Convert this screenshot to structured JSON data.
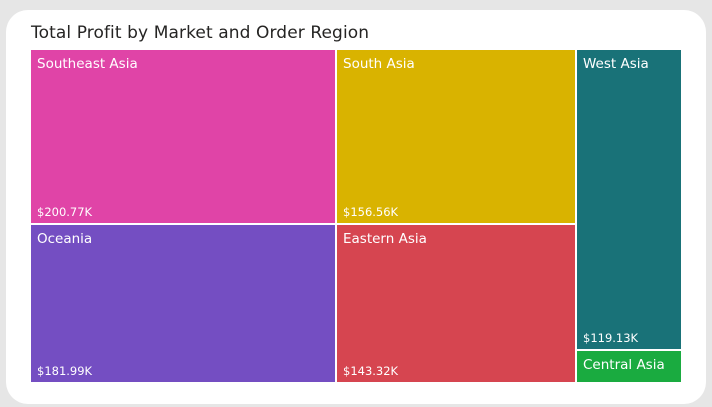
{
  "chart_data": {
    "type": "treemap",
    "title": "Total Profit by Market and Order Region",
    "items": [
      {
        "label": "Southeast Asia",
        "value": 200.77,
        "value_label": "$200.77K",
        "color": "#e044a7"
      },
      {
        "label": "Oceania",
        "value": 181.99,
        "value_label": "$181.99K",
        "color": "#744ec2"
      },
      {
        "label": "South Asia",
        "value": 156.56,
        "value_label": "$156.56K",
        "color": "#d9b300"
      },
      {
        "label": "Eastern Asia",
        "value": 143.32,
        "value_label": "$143.32K",
        "color": "#d64550"
      },
      {
        "label": "West Asia",
        "value": 119.13,
        "value_label": "$119.13K",
        "color": "#197278"
      },
      {
        "label": "Central Asia",
        "value": null,
        "value_label": "",
        "color": "#1aab40"
      }
    ]
  }
}
